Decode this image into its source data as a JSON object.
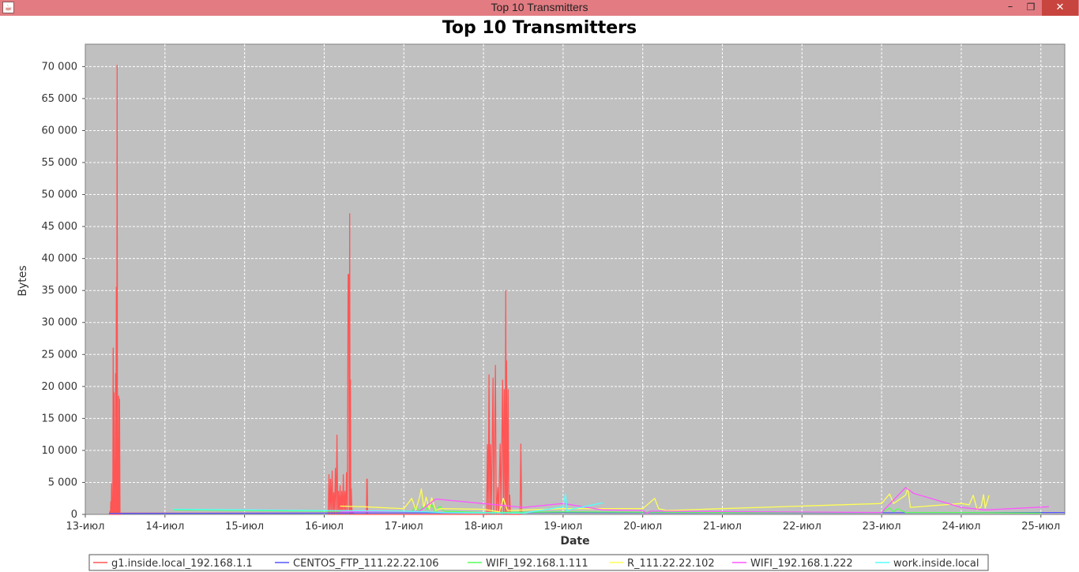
{
  "window": {
    "title": "Top 10 Transmitters",
    "icon": "java-icon",
    "controls": {
      "minimize": "–",
      "maximize": "❐",
      "close": "✕"
    }
  },
  "chart_data": {
    "type": "line",
    "title": "Top 10 Transmitters",
    "xlabel": "Date",
    "ylabel": "Bytes",
    "x_ticks": [
      "13-июл",
      "14-июл",
      "15-июл",
      "16-июл",
      "17-июл",
      "18-июл",
      "19-июл",
      "20-июл",
      "21-июл",
      "22-июл",
      "23-июл",
      "24-июл",
      "25-июл"
    ],
    "y_ticks": [
      "0",
      "5 000",
      "10 000",
      "15 000",
      "20 000",
      "25 000",
      "30 000",
      "35 000",
      "40 000",
      "45 000",
      "50 000",
      "55 000",
      "60 000",
      "65 000",
      "70 000"
    ],
    "xlim": [
      0,
      12.3
    ],
    "ylim": [
      0,
      73500
    ],
    "x_units": "days since 13-июл",
    "grid": true,
    "legend_position": "bottom",
    "plot_background": "#c0c0c0",
    "series": [
      {
        "name": "g1.inside.local_192.168.1.1",
        "color": "#ff5555",
        "points": [
          [
            0.3,
            0
          ],
          [
            0.31,
            500
          ],
          [
            0.315,
            0
          ],
          [
            0.32,
            2000
          ],
          [
            0.325,
            0
          ],
          [
            0.33,
            4800
          ],
          [
            0.335,
            0
          ],
          [
            0.34,
            1500
          ],
          [
            0.345,
            0
          ],
          [
            0.35,
            26000
          ],
          [
            0.355,
            0
          ],
          [
            0.36,
            19000
          ],
          [
            0.365,
            0
          ],
          [
            0.37,
            8200
          ],
          [
            0.375,
            0
          ],
          [
            0.38,
            22000
          ],
          [
            0.385,
            0
          ],
          [
            0.39,
            35500
          ],
          [
            0.395,
            0
          ],
          [
            0.4,
            70200
          ],
          [
            0.405,
            0
          ],
          [
            0.41,
            12000
          ],
          [
            0.415,
            0
          ],
          [
            0.42,
            18500
          ],
          [
            0.425,
            0
          ],
          [
            0.43,
            18000
          ],
          [
            0.435,
            0
          ],
          [
            0.44,
            0
          ],
          [
            0.44,
            200
          ],
          [
            3.05,
            200
          ],
          [
            3.05,
            0
          ],
          [
            3.06,
            6200
          ],
          [
            3.07,
            0
          ],
          [
            3.08,
            5500
          ],
          [
            3.09,
            0
          ],
          [
            3.1,
            6800
          ],
          [
            3.11,
            0
          ],
          [
            3.12,
            3400
          ],
          [
            3.13,
            0
          ],
          [
            3.14,
            7200
          ],
          [
            3.15,
            0
          ],
          [
            3.16,
            12400
          ],
          [
            3.17,
            0
          ],
          [
            3.18,
            3600
          ],
          [
            3.19,
            0
          ],
          [
            3.2,
            4500
          ],
          [
            3.21,
            0
          ],
          [
            3.22,
            3600
          ],
          [
            3.23,
            0
          ],
          [
            3.24,
            6200
          ],
          [
            3.25,
            0
          ],
          [
            3.26,
            3600
          ],
          [
            3.27,
            0
          ],
          [
            3.28,
            6500
          ],
          [
            3.29,
            0
          ],
          [
            3.3,
            37500
          ],
          [
            3.31,
            37500
          ],
          [
            3.315,
            0
          ],
          [
            3.32,
            47000
          ],
          [
            3.325,
            0
          ],
          [
            3.33,
            21000
          ],
          [
            3.335,
            0
          ],
          [
            3.34,
            4000
          ],
          [
            3.35,
            0
          ],
          [
            3.36,
            600
          ],
          [
            3.37,
            0
          ],
          [
            3.53,
            0
          ],
          [
            3.535,
            5500
          ],
          [
            3.54,
            5500
          ],
          [
            3.545,
            0
          ],
          [
            5.04,
            0
          ],
          [
            5.05,
            10900
          ],
          [
            5.06,
            0
          ],
          [
            5.07,
            21800
          ],
          [
            5.08,
            0
          ],
          [
            5.09,
            10900
          ],
          [
            5.1,
            0
          ],
          [
            5.12,
            21300
          ],
          [
            5.13,
            0
          ],
          [
            5.15,
            23300
          ],
          [
            5.16,
            0
          ],
          [
            5.18,
            4200
          ],
          [
            5.19,
            0
          ],
          [
            5.21,
            11000
          ],
          [
            5.22,
            0
          ],
          [
            5.24,
            21000
          ],
          [
            5.25,
            0
          ],
          [
            5.26,
            19500
          ],
          [
            5.27,
            0
          ],
          [
            5.28,
            35000
          ],
          [
            5.285,
            0
          ],
          [
            5.29,
            24000
          ],
          [
            5.3,
            0
          ],
          [
            5.31,
            19500
          ],
          [
            5.32,
            0
          ],
          [
            5.33,
            3000
          ],
          [
            5.34,
            0
          ],
          [
            5.46,
            0
          ],
          [
            5.47,
            11000
          ],
          [
            5.48,
            0
          ]
        ]
      },
      {
        "name": "CENTOS_FTP_111.22.22.106",
        "color": "#5555ff",
        "points": [
          [
            0.3,
            150
          ],
          [
            3.0,
            200
          ],
          [
            6.0,
            300
          ],
          [
            9.0,
            250
          ],
          [
            12.3,
            300
          ]
        ]
      },
      {
        "name": "WIFI_192.168.1.111",
        "color": "#55ff55",
        "points": [
          [
            1.1,
            700
          ],
          [
            3.0,
            500
          ],
          [
            4.1,
            500
          ],
          [
            4.15,
            1200
          ],
          [
            4.2,
            500
          ],
          [
            4.25,
            1400
          ],
          [
            4.3,
            700
          ],
          [
            4.35,
            1500
          ],
          [
            4.4,
            400
          ],
          [
            4.45,
            1300
          ],
          [
            4.5,
            500
          ],
          [
            5.0,
            300
          ],
          [
            6.0,
            400
          ],
          [
            8.0,
            300
          ],
          [
            10.0,
            300
          ],
          [
            10.1,
            1000
          ],
          [
            10.15,
            400
          ],
          [
            10.2,
            900
          ],
          [
            10.3,
            300
          ],
          [
            11.0,
            300
          ],
          [
            12.0,
            200
          ]
        ]
      },
      {
        "name": "R_111.22.22.102",
        "color": "#ffff55",
        "points": [
          [
            3.2,
            1300
          ],
          [
            3.5,
            1200
          ],
          [
            4.0,
            900
          ],
          [
            4.1,
            2500
          ],
          [
            4.15,
            700
          ],
          [
            4.2,
            2800
          ],
          [
            4.22,
            4000
          ],
          [
            4.25,
            1000
          ],
          [
            4.28,
            2700
          ],
          [
            4.32,
            800
          ],
          [
            4.35,
            2600
          ],
          [
            4.4,
            600
          ],
          [
            4.45,
            900
          ],
          [
            5.0,
            800
          ],
          [
            5.2,
            400
          ],
          [
            5.25,
            2500
          ],
          [
            5.3,
            600
          ],
          [
            6.0,
            900
          ],
          [
            7.0,
            900
          ],
          [
            7.15,
            2500
          ],
          [
            7.2,
            900
          ],
          [
            7.3,
            600
          ],
          [
            8.0,
            900
          ],
          [
            10.0,
            1700
          ],
          [
            10.1,
            3200
          ],
          [
            10.15,
            1700
          ],
          [
            10.3,
            3000
          ],
          [
            10.33,
            4100
          ],
          [
            10.36,
            1100
          ],
          [
            11.0,
            1700
          ],
          [
            11.1,
            1500
          ],
          [
            11.15,
            3000
          ],
          [
            11.2,
            700
          ],
          [
            11.25,
            1200
          ],
          [
            11.28,
            3100
          ],
          [
            11.3,
            1000
          ],
          [
            11.35,
            3000
          ]
        ]
      },
      {
        "name": "WIFI_192.168.1.222",
        "color": "#ff55ff",
        "points": [
          [
            3.2,
            400
          ],
          [
            4.2,
            500
          ],
          [
            4.4,
            2400
          ],
          [
            5.5,
            1100
          ],
          [
            6.0,
            1700
          ],
          [
            6.5,
            700
          ],
          [
            7.0,
            600
          ],
          [
            7.05,
            200
          ],
          [
            7.1,
            500
          ],
          [
            10.0,
            300
          ],
          [
            10.3,
            4200
          ],
          [
            10.4,
            3300
          ],
          [
            11.0,
            1100
          ],
          [
            11.3,
            700
          ],
          [
            12.1,
            1200
          ]
        ]
      },
      {
        "name": "work.inside.local",
        "color": "#55ffff",
        "points": [
          [
            1.1,
            800
          ],
          [
            3.0,
            600
          ],
          [
            4.0,
            500
          ],
          [
            4.5,
            300
          ],
          [
            5.5,
            200
          ],
          [
            6.0,
            1200
          ],
          [
            6.03,
            3200
          ],
          [
            6.05,
            500
          ],
          [
            6.1,
            800
          ],
          [
            6.5,
            1800
          ]
        ]
      }
    ]
  }
}
